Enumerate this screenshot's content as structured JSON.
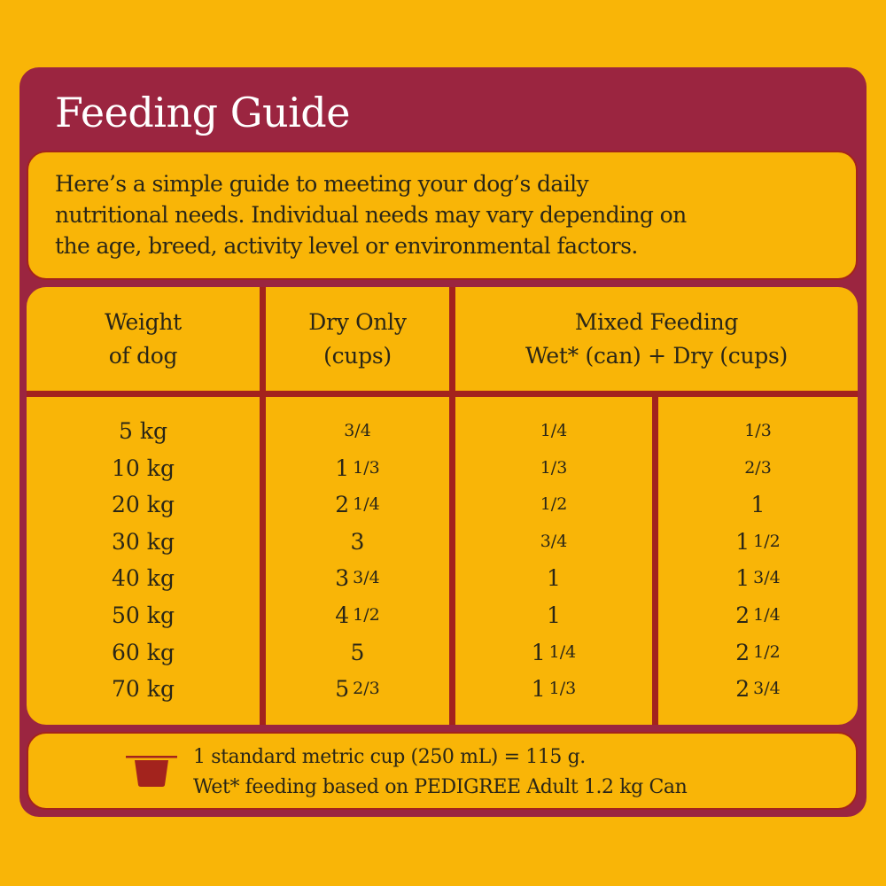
{
  "colors": {
    "background": "#F9B507",
    "card": "#9B2540",
    "grid_lines": "#A3231D",
    "text": "#2A2617",
    "title_text": "#FFFFFF",
    "cup_icon": "#A3231D"
  },
  "title": "Feeding Guide",
  "intro": {
    "line1": "Here’s a simple guide to meeting your dog’s daily",
    "line2": "nutritional needs. Individual needs may vary depending on",
    "line3": "the age, breed, activity level or environmental factors."
  },
  "table": {
    "headers": {
      "weight": {
        "line1": "Weight",
        "line2": "of dog"
      },
      "dry_only": {
        "line1": "Dry Only",
        "line2": "(cups)"
      },
      "mixed": {
        "line1": "Mixed Feeding",
        "line2": "Wet* (can) + Dry (cups)"
      }
    },
    "rows": [
      {
        "weight": "5 kg",
        "dry_whole": "",
        "dry_frac": "3/4",
        "wet_whole": "",
        "wet_frac": "1/4",
        "mixdry_whole": "",
        "mixdry_frac": "1/3"
      },
      {
        "weight": "10 kg",
        "dry_whole": "1",
        "dry_frac": "1/3",
        "wet_whole": "",
        "wet_frac": "1/3",
        "mixdry_whole": "",
        "mixdry_frac": "2/3"
      },
      {
        "weight": "20 kg",
        "dry_whole": "2",
        "dry_frac": "1/4",
        "wet_whole": "",
        "wet_frac": "1/2",
        "mixdry_whole": "1",
        "mixdry_frac": ""
      },
      {
        "weight": "30 kg",
        "dry_whole": "3",
        "dry_frac": "",
        "wet_whole": "",
        "wet_frac": "3/4",
        "mixdry_whole": "1",
        "mixdry_frac": "1/2"
      },
      {
        "weight": "40 kg",
        "dry_whole": "3",
        "dry_frac": "3/4",
        "wet_whole": "1",
        "wet_frac": "",
        "mixdry_whole": "1",
        "mixdry_frac": "3/4"
      },
      {
        "weight": "50 kg",
        "dry_whole": "4",
        "dry_frac": "1/2",
        "wet_whole": "1",
        "wet_frac": "",
        "mixdry_whole": "2",
        "mixdry_frac": "1/4"
      },
      {
        "weight": "60 kg",
        "dry_whole": "5",
        "dry_frac": "",
        "wet_whole": "1",
        "wet_frac": "1/4",
        "mixdry_whole": "2",
        "mixdry_frac": "1/2"
      },
      {
        "weight": "70 kg",
        "dry_whole": "5",
        "dry_frac": "2/3",
        "wet_whole": "1",
        "wet_frac": "1/3",
        "mixdry_whole": "2",
        "mixdry_frac": "3/4"
      }
    ]
  },
  "footer": {
    "icon": "measuring-cup-icon",
    "line1": "1 standard metric cup (250 mL) = 115 g.",
    "line2": "Wet* feeding based on PEDIGREE Adult 1.2 kg Can"
  }
}
